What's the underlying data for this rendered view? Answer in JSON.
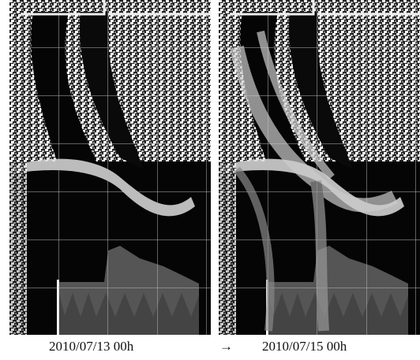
{
  "panels": [
    {
      "caption": "2010/07/13 00h"
    },
    {
      "caption": "2010/07/15 00h"
    }
  ],
  "arrow": "→"
}
